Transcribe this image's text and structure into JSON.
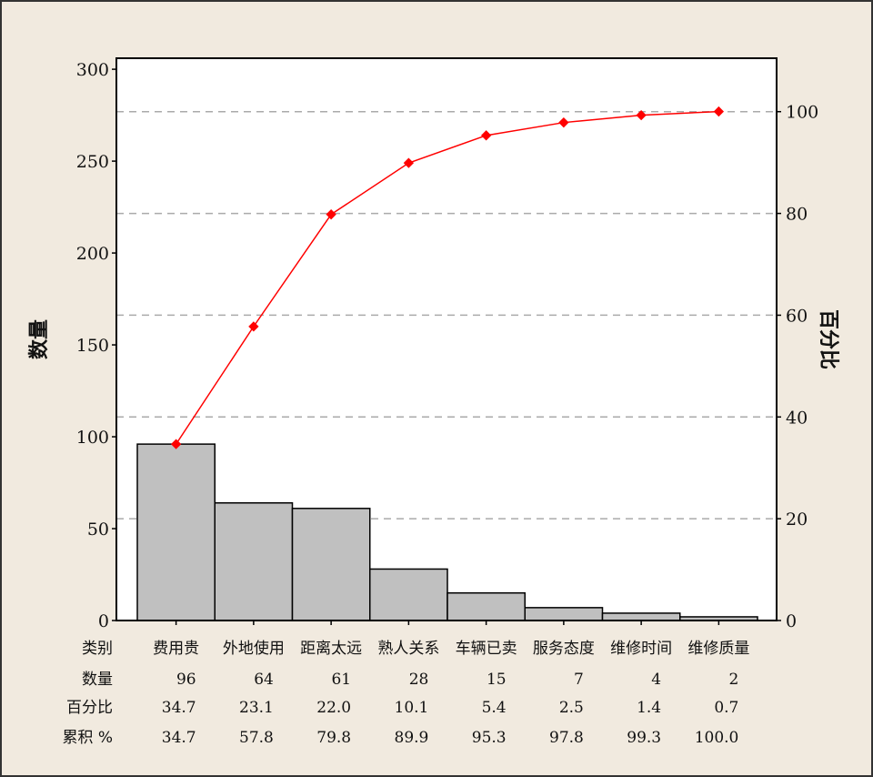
{
  "chart_data": {
    "type": "bar",
    "subtype": "pareto",
    "categories": [
      "费用贵",
      "外地使用",
      "距离太远",
      "熟人关系",
      "车辆已卖",
      "服务态度",
      "维修时间",
      "维修质量"
    ],
    "values": [
      96,
      64,
      61,
      28,
      15,
      7,
      4,
      2
    ],
    "percent": [
      "34.7",
      "23.1",
      "22.0",
      "10.1",
      "5.4",
      "2.5",
      "1.4",
      "0.7"
    ],
    "cumulative_percent": [
      "34.7",
      "57.8",
      "79.8",
      "89.9",
      "95.3",
      "97.8",
      "99.3",
      "100.0"
    ],
    "cumulative_counts": [
      96,
      160,
      221,
      249,
      264,
      271,
      275,
      277
    ],
    "ylabel": "数量",
    "y2label": "百分比",
    "ylim": [
      0,
      306
    ],
    "y2lim": [
      0,
      110.5
    ],
    "yticks": [
      0,
      50,
      100,
      150,
      200,
      250,
      300
    ],
    "y2ticks": [
      0,
      20,
      40,
      60,
      80,
      100
    ],
    "grid": "dashed horizontal at right-axis ticks",
    "table_row_labels": [
      "类别",
      "数量",
      "百分比",
      "累积 %"
    ],
    "bar_color": "#c0c0c0",
    "line_color": "#ff0000"
  }
}
